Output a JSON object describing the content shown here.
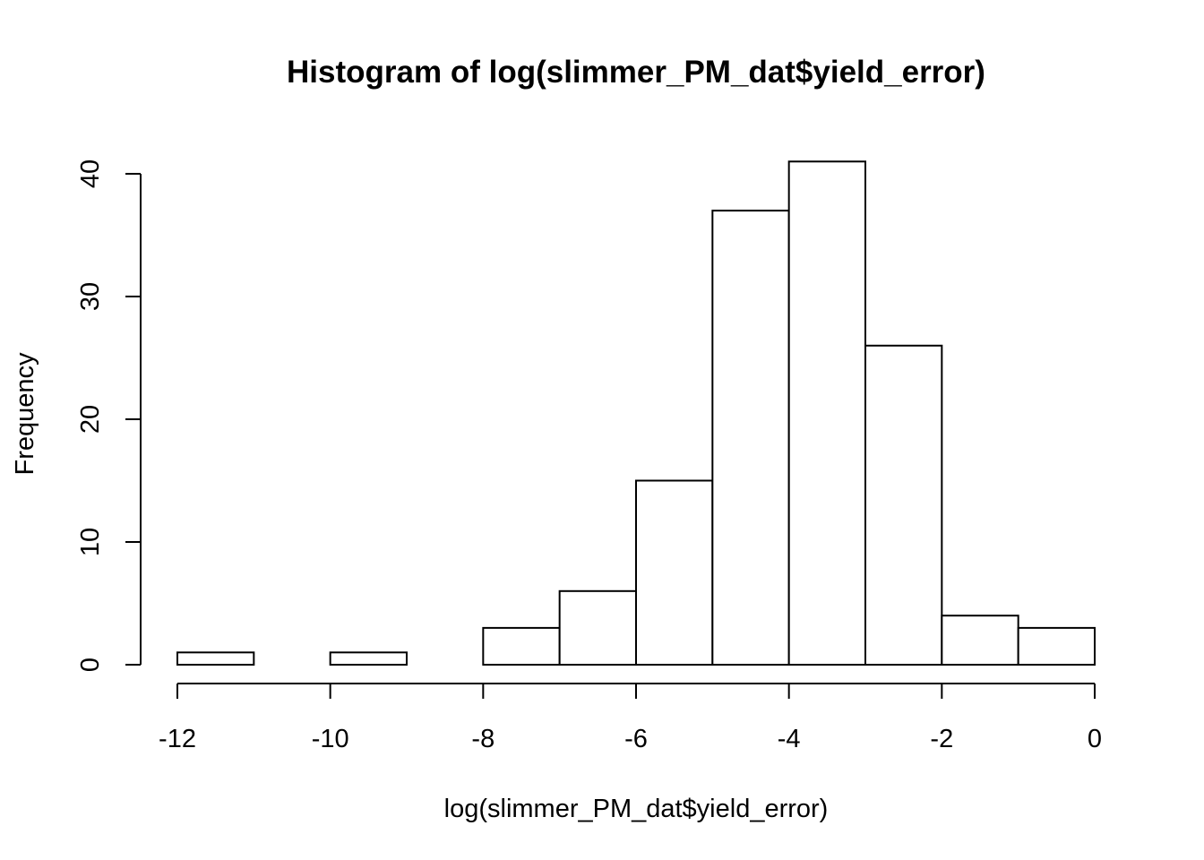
{
  "chart_data": {
    "type": "bar",
    "subtype": "histogram",
    "title": "Histogram of log(slimmer_PM_dat$yield_error)",
    "xlabel": "log(slimmer_PM_dat$yield_error)",
    "ylabel": "Frequency",
    "bin_edges": [
      -12,
      -11,
      -10,
      -9,
      -8,
      -7,
      -6,
      -5,
      -4,
      -3,
      -2,
      -1,
      0
    ],
    "values": [
      1,
      0,
      1,
      0,
      3,
      6,
      15,
      37,
      41,
      26,
      4,
      3
    ],
    "xlim": [
      -12,
      0
    ],
    "ylim": [
      0,
      40
    ],
    "x_ticks": [
      -12,
      -10,
      -8,
      -6,
      -4,
      -2,
      0
    ],
    "y_ticks": [
      0,
      10,
      20,
      30,
      40
    ],
    "bar_fill": "#ffffff",
    "bar_stroke": "#000000",
    "grid": false,
    "legend": "none"
  }
}
